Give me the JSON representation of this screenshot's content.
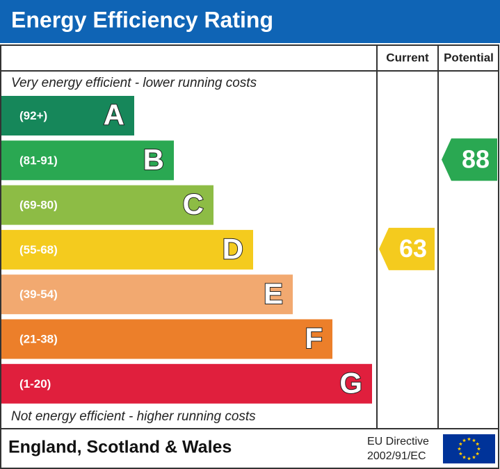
{
  "title": "Energy Efficiency Rating",
  "columns": {
    "current": "Current",
    "potential": "Potential"
  },
  "top_note": "Very energy efficient - lower running costs",
  "bottom_note": "Not energy efficient - higher running costs",
  "bands": [
    {
      "range": "(92+)",
      "letter": "A",
      "color": "#16875a"
    },
    {
      "range": "(81-91)",
      "letter": "B",
      "color": "#2aa852"
    },
    {
      "range": "(69-80)",
      "letter": "C",
      "color": "#8dbc45"
    },
    {
      "range": "(55-68)",
      "letter": "D",
      "color": "#f4cb1e"
    },
    {
      "range": "(39-54)",
      "letter": "E",
      "color": "#f2a970"
    },
    {
      "range": "(21-38)",
      "letter": "F",
      "color": "#ec7f2a"
    },
    {
      "range": "(1-20)",
      "letter": "G",
      "color": "#e01f3d"
    }
  ],
  "current": 63,
  "potential": 88,
  "footer": {
    "region": "England, Scotland & Wales",
    "directive_line1": "EU Directive",
    "directive_line2": "2002/91/EC"
  }
}
